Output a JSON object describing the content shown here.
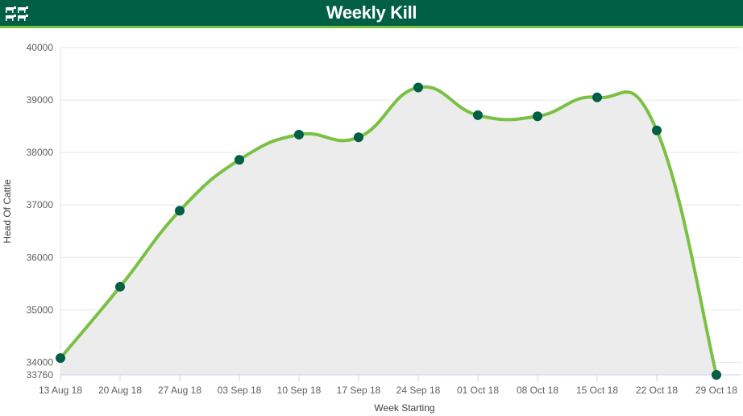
{
  "header": {
    "title": "Weekly Kill",
    "icon": "cattle-icon",
    "background": "#005f45",
    "accent": "#7ac143"
  },
  "chart_data": {
    "type": "line",
    "title": "",
    "xlabel": "Week Starting",
    "ylabel": "Head Of Cattle",
    "categories": [
      "13 Aug 18",
      "20 Aug 18",
      "27 Aug 18",
      "03 Sep 18",
      "10 Sep 18",
      "17 Sep 18",
      "24 Sep 18",
      "01 Oct 18",
      "08 Oct 18",
      "15 Oct 18",
      "22 Oct 18",
      "29 Oct 18"
    ],
    "series": [
      {
        "values": [
          34080,
          35440,
          36890,
          37860,
          38340,
          38290,
          39240,
          38710,
          38690,
          39050,
          38420,
          33760
        ]
      }
    ],
    "ylim": [
      33760,
      40000
    ],
    "yticks": [
      33760,
      34000,
      35000,
      36000,
      37000,
      38000,
      39000,
      40000
    ],
    "grid": true,
    "legend": "none",
    "colors": {
      "line": "#7ac143",
      "marker": "#005f45",
      "fill": "#ececec",
      "grid": "#e6e6e6"
    }
  }
}
